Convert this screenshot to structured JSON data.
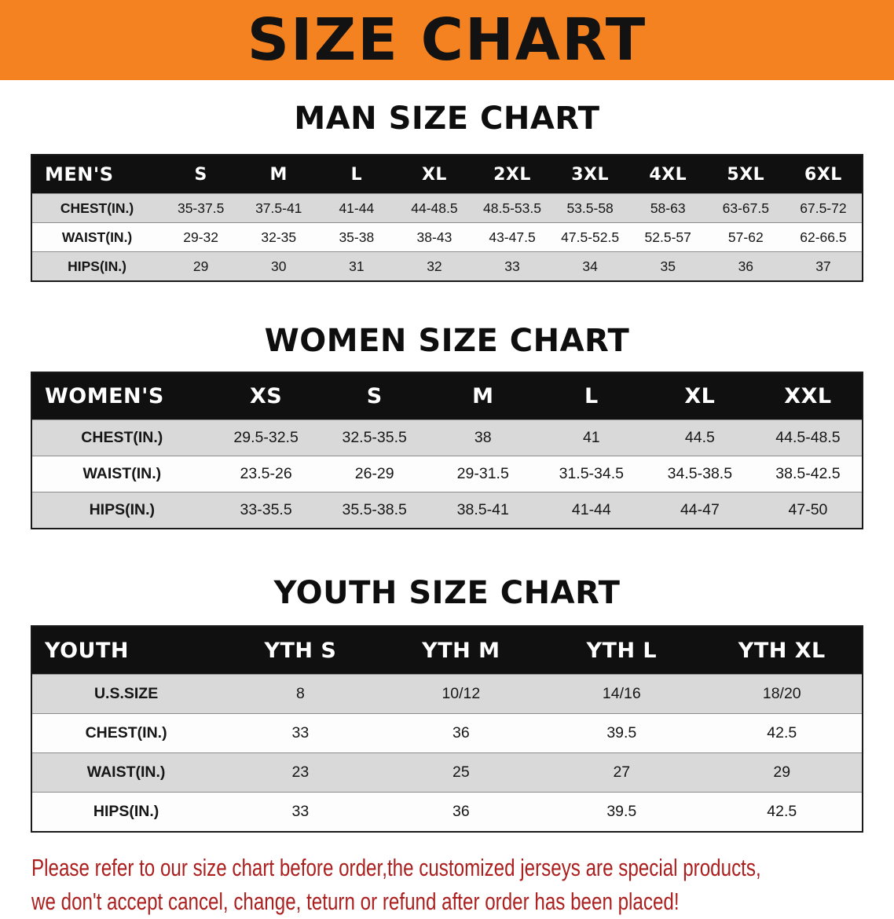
{
  "banner": {
    "title": "SIZE CHART"
  },
  "sections": [
    {
      "id": "men",
      "heading": "MAN SIZE CHART",
      "table": {
        "header": [
          "MEN'S",
          "S",
          "M",
          "L",
          "XL",
          "2XL",
          "3XL",
          "4XL",
          "5XL",
          "6XL"
        ],
        "rows": [
          [
            "CHEST(IN.)",
            "35-37.5",
            "37.5-41",
            "41-44",
            "44-48.5",
            "48.5-53.5",
            "53.5-58",
            "58-63",
            "63-67.5",
            "67.5-72"
          ],
          [
            "WAIST(IN.)",
            "29-32",
            "32-35",
            "35-38",
            "38-43",
            "43-47.5",
            "47.5-52.5",
            "52.5-57",
            "57-62",
            "62-66.5"
          ],
          [
            "HIPS(IN.)",
            "29",
            "30",
            "31",
            "32",
            "33",
            "34",
            "35",
            "36",
            "37"
          ]
        ]
      }
    },
    {
      "id": "women",
      "heading": "WOMEN SIZE CHART",
      "table": {
        "header": [
          "WOMEN'S",
          "XS",
          "S",
          "M",
          "L",
          "XL",
          "XXL"
        ],
        "rows": [
          [
            "CHEST(IN.)",
            "29.5-32.5",
            "32.5-35.5",
            "38",
            "41",
            "44.5",
            "44.5-48.5"
          ],
          [
            "WAIST(IN.)",
            "23.5-26",
            "26-29",
            "29-31.5",
            "31.5-34.5",
            "34.5-38.5",
            "38.5-42.5"
          ],
          [
            "HIPS(IN.)",
            "33-35.5",
            "35.5-38.5",
            "38.5-41",
            "41-44",
            "44-47",
            "47-50"
          ]
        ]
      }
    },
    {
      "id": "youth",
      "heading": "YOUTH SIZE CHART",
      "table": {
        "header": [
          "YOUTH",
          "YTH S",
          "YTH M",
          "YTH L",
          "YTH XL"
        ],
        "rows": [
          [
            "U.S.SIZE",
            "8",
            "10/12",
            "14/16",
            "18/20"
          ],
          [
            "CHEST(IN.)",
            "33",
            "36",
            "39.5",
            "42.5"
          ],
          [
            "WAIST(IN.)",
            "23",
            "25",
            "27",
            "29"
          ],
          [
            "HIPS(IN.)",
            "33",
            "36",
            "39.5",
            "42.5"
          ]
        ]
      }
    }
  ],
  "disclaimer": {
    "line1": "Please refer to our size chart before order,the customized jerseys are special products,",
    "line2": "we don't accept cancel, change, teturn or refund after order has been placed!"
  },
  "colors": {
    "banner_orange": "#F58220",
    "table_header_black": "#101010",
    "row_gray": "#D9D9D9",
    "disclaimer_red": "#AC1F1F"
  }
}
